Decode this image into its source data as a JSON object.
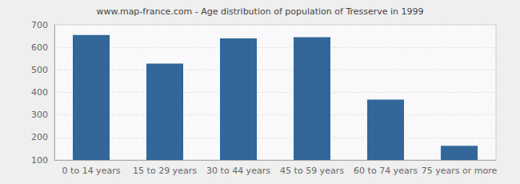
{
  "chart_data": {
    "type": "bar",
    "title": "www.map-france.com - Age distribution of population of Tresserve in 1999",
    "categories": [
      "0 to 14 years",
      "15 to 29 years",
      "30 to 44 years",
      "45 to 59 years",
      "60 to 74 years",
      "75 years or more"
    ],
    "values": [
      655,
      528,
      640,
      645,
      368,
      163
    ],
    "color": "#336699",
    "ylim": [
      100,
      700
    ],
    "yticks": [
      100,
      200,
      300,
      400,
      500,
      600,
      700
    ],
    "grid": true
  }
}
